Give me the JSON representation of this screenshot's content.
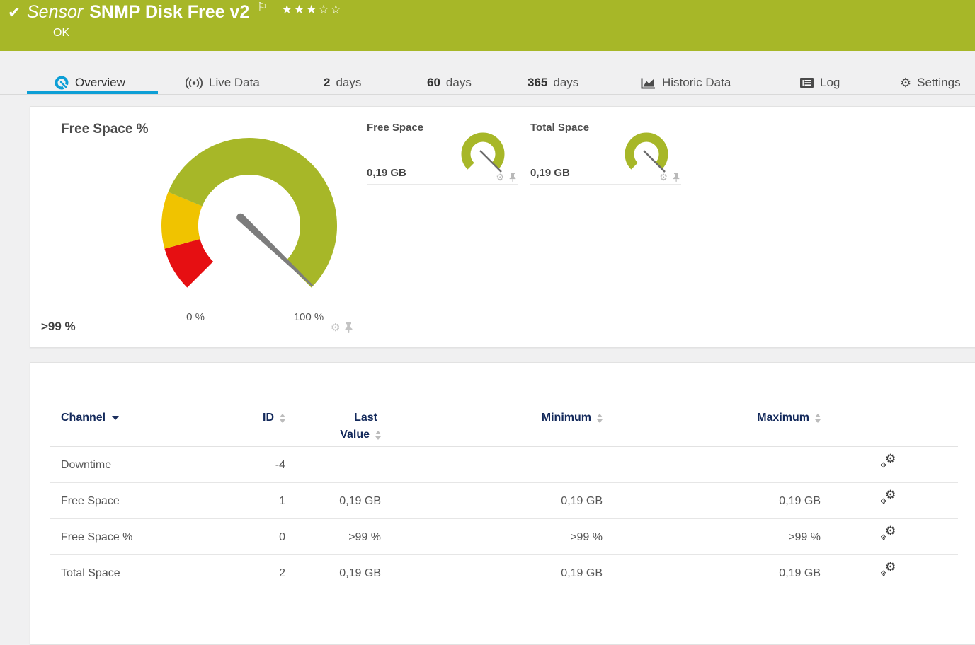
{
  "colors": {
    "brand_green": "#a7b728",
    "accent_blue": "#0d9fd6",
    "gauge_yellow": "#f0c300",
    "gauge_red": "#e60f12",
    "header_navy": "#13295b"
  },
  "icons": {
    "check": "✔",
    "flag": "⚐",
    "star_filled": "★",
    "star_empty": "☆",
    "gear": "⚙"
  },
  "header": {
    "type_label": "Sensor",
    "title": "SNMP Disk Free v2",
    "status": "OK",
    "rating": "3 of 5",
    "stars": [
      "★",
      "★",
      "★",
      "☆",
      "☆"
    ]
  },
  "tabs": [
    {
      "label": "Overview",
      "active": true
    },
    {
      "label": "Live Data"
    },
    {
      "number": "2",
      "label": "days"
    },
    {
      "number": "60",
      "label": "days"
    },
    {
      "number": "365",
      "label": "days"
    },
    {
      "label": "Historic Data"
    },
    {
      "label": "Log"
    },
    {
      "label": "Settings"
    }
  ],
  "gauges": {
    "main": {
      "title": "Free Space %",
      "value": ">99 %",
      "scale_min": "0 %",
      "scale_max": "100 %",
      "needle_percent": 99.5,
      "segments": [
        {
          "color": "#e60f12",
          "from_percent": 0,
          "to_percent": 11
        },
        {
          "color": "#f0c300",
          "from_percent": 11,
          "to_percent": 25
        },
        {
          "color": "#a7b728",
          "from_percent": 25,
          "to_percent": 100
        }
      ]
    },
    "minis": [
      {
        "title": "Free Space",
        "value": "0,19 GB"
      },
      {
        "title": "Total Space",
        "value": "0,19 GB"
      }
    ]
  },
  "table": {
    "headers": {
      "channel": "Channel",
      "id": "ID",
      "last_line1": "Last",
      "last_line2": "Value",
      "minimum": "Minimum",
      "maximum": "Maximum"
    },
    "rows": [
      {
        "channel": "Downtime",
        "id": "-4",
        "last_value": "",
        "minimum": "",
        "maximum": ""
      },
      {
        "channel": "Free Space",
        "id": "1",
        "last_value": "0,19 GB",
        "minimum": "0,19 GB",
        "maximum": "0,19 GB"
      },
      {
        "channel": "Free Space %",
        "id": "0",
        "last_value": ">99 %",
        "minimum": ">99 %",
        "maximum": ">99 %"
      },
      {
        "channel": "Total Space",
        "id": "2",
        "last_value": "0,19 GB",
        "minimum": "0,19 GB",
        "maximum": "0,19 GB"
      }
    ]
  }
}
